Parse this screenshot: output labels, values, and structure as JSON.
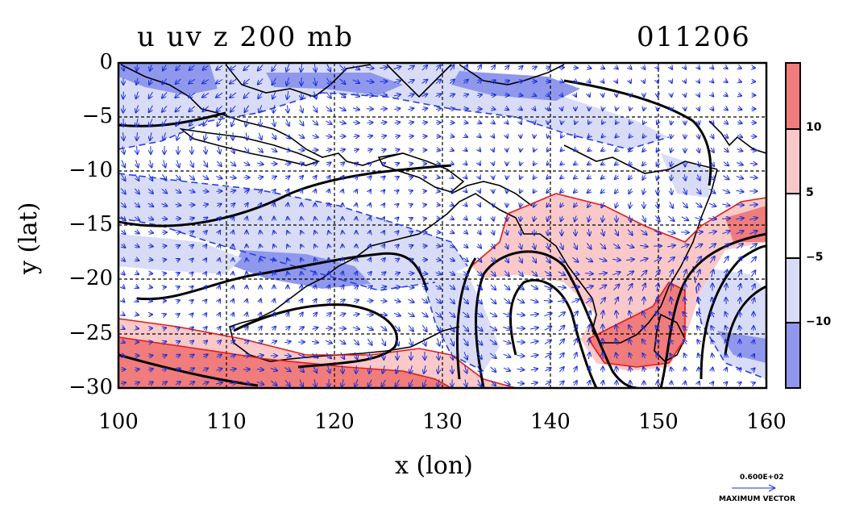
{
  "title": {
    "left": "u uv z 200 mb",
    "right": "011206"
  },
  "axes": {
    "xlabel": "x (lon)",
    "ylabel": "y (lat)",
    "x_ticks": [
      "100",
      "110",
      "120",
      "130",
      "140",
      "150",
      "160"
    ],
    "y_ticks": [
      "0",
      "−5",
      "−10",
      "−15",
      "−20",
      "−25",
      "−30"
    ],
    "x_range": [
      100,
      160
    ],
    "y_range": [
      -30,
      0
    ],
    "grid": "dashed"
  },
  "colorbar": {
    "ticks": [
      "10",
      "5",
      "−5",
      "−10"
    ],
    "bands": [
      {
        "color": "#f07c7c"
      },
      {
        "color": "#f9c8c8"
      },
      {
        "color": "#ffffff"
      },
      {
        "color": "#d9dcf7"
      },
      {
        "color": "#8f98ec"
      }
    ]
  },
  "reference_vector": {
    "value": "0.600E+02",
    "label": "MAXIMUM VECTOR"
  },
  "colors": {
    "positive_strong": "#f07c7c",
    "positive_weak": "#f9c8c8",
    "negative_weak": "#d9dcf7",
    "negative_strong": "#8f98ec",
    "vector": "#1a2fd9",
    "contour_positive": "#e21b1b",
    "contour_negative": "#2a3fe0",
    "geopotential": "#000000"
  }
}
